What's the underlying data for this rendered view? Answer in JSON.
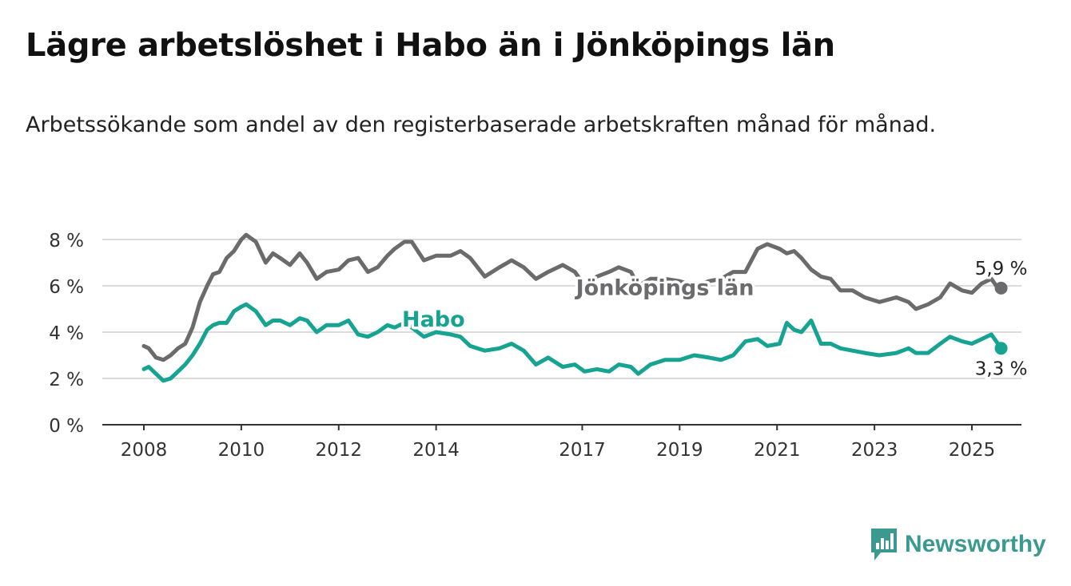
{
  "title": "Lägre arbetslöshet i Habo än i Jönköpings län",
  "subtitle": "Arbetssökande som andel av den registerbaserade arbetskraften månad för månad.",
  "brand": {
    "name": "Newsworthy",
    "color": "#3a9a90",
    "logo_icon": "bar-chart-speech-bubble-icon"
  },
  "chart_data": {
    "type": "line",
    "xlabel": "",
    "ylabel": "",
    "ylim": [
      0,
      8
    ],
    "y_ticks": [
      0,
      2,
      4,
      6,
      8
    ],
    "y_tick_labels": [
      "0 %",
      "2 %",
      "4 %",
      "6 %",
      "8 %"
    ],
    "x_ticks": [
      2008,
      2010,
      2012,
      2014,
      2017,
      2019,
      2021,
      2023,
      2025
    ],
    "x_tick_labels": [
      "2008",
      "2010",
      "2012",
      "2014",
      "2017",
      "2019",
      "2021",
      "2023",
      "2025"
    ],
    "grid": true,
    "legend": "direct labels on lines",
    "series": [
      {
        "name": "Jönköpings län",
        "color": "#6b6b6e",
        "end_label": "5,9 %",
        "points": [
          [
            2008.0,
            3.4
          ],
          [
            2008.1,
            3.3
          ],
          [
            2008.25,
            2.9
          ],
          [
            2008.4,
            2.8
          ],
          [
            2008.55,
            3.0
          ],
          [
            2008.7,
            3.3
          ],
          [
            2008.85,
            3.5
          ],
          [
            2009.0,
            4.2
          ],
          [
            2009.15,
            5.3
          ],
          [
            2009.3,
            6.0
          ],
          [
            2009.42,
            6.5
          ],
          [
            2009.55,
            6.6
          ],
          [
            2009.7,
            7.2
          ],
          [
            2009.85,
            7.5
          ],
          [
            2010.0,
            8.0
          ],
          [
            2010.1,
            8.2
          ],
          [
            2010.3,
            7.9
          ],
          [
            2010.5,
            7.0
          ],
          [
            2010.65,
            7.4
          ],
          [
            2010.8,
            7.2
          ],
          [
            2011.0,
            6.9
          ],
          [
            2011.2,
            7.4
          ],
          [
            2011.35,
            7.0
          ],
          [
            2011.55,
            6.3
          ],
          [
            2011.75,
            6.6
          ],
          [
            2012.0,
            6.7
          ],
          [
            2012.2,
            7.1
          ],
          [
            2012.4,
            7.2
          ],
          [
            2012.6,
            6.6
          ],
          [
            2012.8,
            6.8
          ],
          [
            2013.0,
            7.3
          ],
          [
            2013.15,
            7.6
          ],
          [
            2013.35,
            7.9
          ],
          [
            2013.5,
            7.9
          ],
          [
            2013.75,
            7.1
          ],
          [
            2014.0,
            7.3
          ],
          [
            2014.3,
            7.3
          ],
          [
            2014.5,
            7.5
          ],
          [
            2014.7,
            7.2
          ],
          [
            2015.0,
            6.4
          ],
          [
            2015.3,
            6.8
          ],
          [
            2015.55,
            7.1
          ],
          [
            2015.8,
            6.8
          ],
          [
            2016.05,
            6.3
          ],
          [
            2016.3,
            6.6
          ],
          [
            2016.6,
            6.9
          ],
          [
            2016.85,
            6.6
          ],
          [
            2017.05,
            6.0
          ],
          [
            2017.3,
            6.4
          ],
          [
            2017.55,
            6.6
          ],
          [
            2017.75,
            6.8
          ],
          [
            2018.0,
            6.6
          ],
          [
            2018.15,
            6.0
          ],
          [
            2018.4,
            6.3
          ],
          [
            2018.7,
            6.3
          ],
          [
            2019.0,
            6.2
          ],
          [
            2019.3,
            6.0
          ],
          [
            2019.6,
            6.2
          ],
          [
            2019.85,
            6.3
          ],
          [
            2020.1,
            6.6
          ],
          [
            2020.35,
            6.6
          ],
          [
            2020.6,
            7.6
          ],
          [
            2020.8,
            7.8
          ],
          [
            2021.05,
            7.6
          ],
          [
            2021.2,
            7.4
          ],
          [
            2021.35,
            7.5
          ],
          [
            2021.5,
            7.2
          ],
          [
            2021.7,
            6.7
          ],
          [
            2021.9,
            6.4
          ],
          [
            2022.1,
            6.3
          ],
          [
            2022.3,
            5.8
          ],
          [
            2022.55,
            5.8
          ],
          [
            2022.8,
            5.5
          ],
          [
            2023.1,
            5.3
          ],
          [
            2023.45,
            5.5
          ],
          [
            2023.7,
            5.3
          ],
          [
            2023.85,
            5.0
          ],
          [
            2024.1,
            5.2
          ],
          [
            2024.35,
            5.5
          ],
          [
            2024.55,
            6.1
          ],
          [
            2024.8,
            5.8
          ],
          [
            2025.0,
            5.7
          ],
          [
            2025.2,
            6.1
          ],
          [
            2025.4,
            6.3
          ],
          [
            2025.5,
            6.0
          ],
          [
            2025.6,
            5.9
          ]
        ]
      },
      {
        "name": "Habo",
        "color": "#17a391",
        "end_label": "3,3 %",
        "points": [
          [
            2008.0,
            2.4
          ],
          [
            2008.1,
            2.5
          ],
          [
            2008.25,
            2.2
          ],
          [
            2008.4,
            1.9
          ],
          [
            2008.55,
            2.0
          ],
          [
            2008.7,
            2.3
          ],
          [
            2008.85,
            2.6
          ],
          [
            2009.0,
            3.0
          ],
          [
            2009.15,
            3.5
          ],
          [
            2009.3,
            4.1
          ],
          [
            2009.42,
            4.3
          ],
          [
            2009.55,
            4.4
          ],
          [
            2009.7,
            4.4
          ],
          [
            2009.85,
            4.9
          ],
          [
            2010.0,
            5.1
          ],
          [
            2010.1,
            5.2
          ],
          [
            2010.3,
            4.9
          ],
          [
            2010.5,
            4.3
          ],
          [
            2010.65,
            4.5
          ],
          [
            2010.8,
            4.5
          ],
          [
            2011.0,
            4.3
          ],
          [
            2011.2,
            4.6
          ],
          [
            2011.35,
            4.5
          ],
          [
            2011.55,
            4.0
          ],
          [
            2011.75,
            4.3
          ],
          [
            2012.0,
            4.3
          ],
          [
            2012.2,
            4.5
          ],
          [
            2012.4,
            3.9
          ],
          [
            2012.6,
            3.8
          ],
          [
            2012.8,
            4.0
          ],
          [
            2013.0,
            4.3
          ],
          [
            2013.15,
            4.2
          ],
          [
            2013.35,
            4.4
          ],
          [
            2013.5,
            4.2
          ],
          [
            2013.75,
            3.8
          ],
          [
            2014.0,
            4.0
          ],
          [
            2014.3,
            3.9
          ],
          [
            2014.5,
            3.8
          ],
          [
            2014.7,
            3.4
          ],
          [
            2015.0,
            3.2
          ],
          [
            2015.3,
            3.3
          ],
          [
            2015.55,
            3.5
          ],
          [
            2015.8,
            3.2
          ],
          [
            2016.05,
            2.6
          ],
          [
            2016.3,
            2.9
          ],
          [
            2016.6,
            2.5
          ],
          [
            2016.85,
            2.6
          ],
          [
            2017.05,
            2.3
          ],
          [
            2017.3,
            2.4
          ],
          [
            2017.55,
            2.3
          ],
          [
            2017.75,
            2.6
          ],
          [
            2018.0,
            2.5
          ],
          [
            2018.15,
            2.2
          ],
          [
            2018.4,
            2.6
          ],
          [
            2018.7,
            2.8
          ],
          [
            2019.0,
            2.8
          ],
          [
            2019.3,
            3.0
          ],
          [
            2019.6,
            2.9
          ],
          [
            2019.85,
            2.8
          ],
          [
            2020.1,
            3.0
          ],
          [
            2020.35,
            3.6
          ],
          [
            2020.6,
            3.7
          ],
          [
            2020.8,
            3.4
          ],
          [
            2021.05,
            3.5
          ],
          [
            2021.2,
            4.4
          ],
          [
            2021.35,
            4.1
          ],
          [
            2021.5,
            4.0
          ],
          [
            2021.7,
            4.5
          ],
          [
            2021.9,
            3.5
          ],
          [
            2022.1,
            3.5
          ],
          [
            2022.3,
            3.3
          ],
          [
            2022.55,
            3.2
          ],
          [
            2022.8,
            3.1
          ],
          [
            2023.1,
            3.0
          ],
          [
            2023.45,
            3.1
          ],
          [
            2023.7,
            3.3
          ],
          [
            2023.85,
            3.1
          ],
          [
            2024.1,
            3.1
          ],
          [
            2024.35,
            3.5
          ],
          [
            2024.55,
            3.8
          ],
          [
            2024.8,
            3.6
          ],
          [
            2025.0,
            3.5
          ],
          [
            2025.2,
            3.7
          ],
          [
            2025.4,
            3.9
          ],
          [
            2025.5,
            3.6
          ],
          [
            2025.6,
            3.3
          ]
        ]
      }
    ]
  }
}
